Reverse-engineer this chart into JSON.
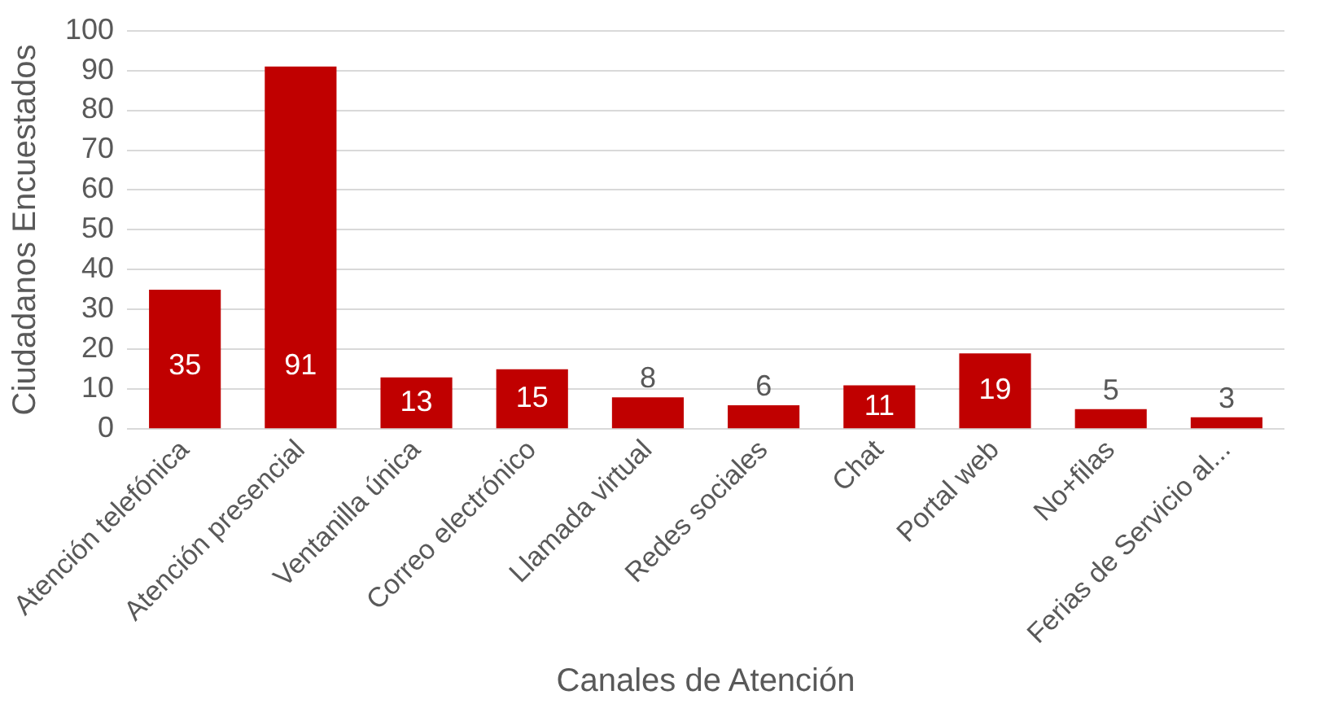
{
  "chart_data": {
    "type": "bar",
    "xlabel": "Canales de Atención",
    "ylabel": "Ciudadanos Encuestados",
    "categories": [
      "Atención telefónica",
      "Atención presencial",
      "Ventanilla única",
      "Correo electrónico",
      "Llamada virtual",
      "Redes sociales",
      "Chat",
      "Portal web",
      "No+filas",
      "Ferias de Servicio al..."
    ],
    "values": [
      35,
      91,
      13,
      15,
      8,
      6,
      11,
      19,
      5,
      3
    ],
    "color": "#c00000",
    "ylim": [
      0,
      100
    ],
    "yticks": [
      0,
      10,
      20,
      30,
      40,
      50,
      60,
      70,
      80,
      90,
      100
    ],
    "grid": "y",
    "data_labels": true
  }
}
